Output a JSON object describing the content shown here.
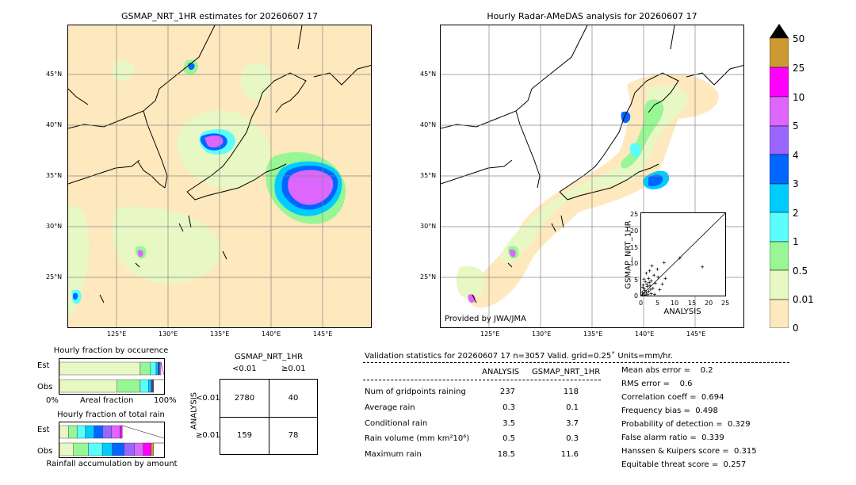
{
  "left_panel": {
    "title": "GSMAP_NRT_1HR estimates for 20260607 17",
    "lon_ticks": [
      "125°E",
      "130°E",
      "135°E",
      "140°E",
      "145°E"
    ],
    "lat_ticks": [
      "45°N",
      "40°N",
      "35°N",
      "30°N",
      "25°N"
    ]
  },
  "right_panel": {
    "title": "Hourly Radar-AMeDAS analysis for 20260607 17",
    "lon_ticks": [
      "125°E",
      "130°E",
      "135°E",
      "140°E",
      "145°E"
    ],
    "lat_ticks": [
      "45°N",
      "40°N",
      "35°N",
      "30°N",
      "25°N"
    ],
    "credit": "Provided by JWA/JMA"
  },
  "colorbar": {
    "levels": [
      "0",
      "0.01",
      "0.5",
      "1",
      "2",
      "3",
      "4",
      "5",
      "10",
      "25",
      "50"
    ],
    "colors": [
      "#fee8bd",
      "#e8f8c4",
      "#98f794",
      "#5cfdfd",
      "#00ccff",
      "#0066ff",
      "#9966ff",
      "#dd66ff",
      "#ff00ff",
      "#cc9933",
      "#000000"
    ]
  },
  "scatter": {
    "xlabel": "ANALYSIS",
    "ylabel": "GSMAP_NRT_1HR",
    "x_ticks": [
      "0",
      "5",
      "10",
      "15",
      "20",
      "25"
    ],
    "y_ticks": [
      "0",
      "5",
      "10",
      "15",
      "20",
      "25"
    ]
  },
  "chart_data": {
    "type": "scatter",
    "xlim": [
      0,
      25
    ],
    "ylim": [
      0,
      25
    ],
    "diagonal_line": true,
    "points": [
      [
        18.2,
        8.7
      ],
      [
        11.5,
        11.4
      ],
      [
        6.8,
        10.0
      ],
      [
        3.2,
        9.0
      ],
      [
        4.8,
        8.0
      ],
      [
        2.5,
        7.5
      ],
      [
        1.5,
        6.8
      ],
      [
        3.8,
        6.2
      ],
      [
        7.2,
        5.2
      ],
      [
        5.0,
        5.6
      ],
      [
        2.2,
        5.2
      ],
      [
        0.8,
        5.0
      ],
      [
        1.2,
        4.2
      ],
      [
        3.0,
        4.5
      ],
      [
        4.2,
        3.7
      ],
      [
        6.3,
        3.5
      ],
      [
        2.6,
        3.0
      ],
      [
        1.8,
        2.8
      ],
      [
        0.5,
        2.5
      ],
      [
        3.5,
        2.2
      ],
      [
        5.5,
        1.8
      ],
      [
        1.0,
        1.6
      ],
      [
        2.2,
        1.3
      ],
      [
        0.4,
        1.0
      ],
      [
        1.5,
        0.8
      ],
      [
        3.0,
        0.6
      ],
      [
        0.7,
        0.5
      ],
      [
        2.0,
        0.3
      ],
      [
        0.3,
        0.2
      ],
      [
        1.2,
        0.1
      ],
      [
        4.0,
        0.4
      ],
      [
        0.9,
        2.0
      ],
      [
        2.8,
        1.9
      ],
      [
        1.7,
        3.5
      ],
      [
        0.6,
        3.2
      ],
      [
        2.4,
        4.0
      ]
    ]
  },
  "occurrence": {
    "title": "Hourly fraction by occurence",
    "row_labels": [
      "Est",
      "Obs"
    ],
    "axis_left": "0%",
    "axis_mid": "Areal fraction",
    "axis_right": "100%",
    "est_fractions": [
      0.772,
      0.097,
      0.055,
      0.018,
      0.01,
      0.008,
      0.01
    ],
    "obs_fractions": [
      0.551,
      0.221,
      0.078,
      0.028,
      0.008,
      0.004,
      0.004,
      0.006
    ]
  },
  "total_rain": {
    "title": "Hourly fraction of total rain",
    "row_labels": [
      "Est",
      "Obs"
    ],
    "footer": "Rainfall accumulation by amount",
    "est_fractions": [
      0.085,
      0.083,
      0.081,
      0.083,
      0.081,
      0.083,
      0.083,
      0.021
    ],
    "obs_fractions": [
      0.134,
      0.142,
      0.134,
      0.095,
      0.113,
      0.1,
      0.084,
      0.074,
      0.024
    ]
  },
  "contingency": {
    "header": "GSMAP_NRT_1HR",
    "col_labels": [
      "<0.01",
      "≥0.01"
    ],
    "row_axis_label": "ANALYSIS",
    "row_labels": [
      "<0.01",
      "≥0.01"
    ],
    "cells": [
      [
        "2780",
        "40"
      ],
      [
        "159",
        "78"
      ]
    ]
  },
  "validation": {
    "header": "Validation statistics for 20260607 17  n=3057 Valid. grid=0.25˚ Units=mm/hr.",
    "col_analysis": "ANALYSIS",
    "col_gsmap": "GSMAP_NRT_1HR",
    "rows": [
      {
        "label": "Num of gridpoints raining",
        "analysis": "237",
        "gsmap": "118"
      },
      {
        "label": "Average rain",
        "analysis": "0.3",
        "gsmap": "0.1"
      },
      {
        "label": "Conditional rain",
        "analysis": "3.5",
        "gsmap": "3.7"
      },
      {
        "label": "Rain volume (mm km²10⁶)",
        "analysis": "0.5",
        "gsmap": "0.3"
      },
      {
        "label": "Maximum rain",
        "analysis": "18.5",
        "gsmap": "11.6"
      }
    ],
    "scores": [
      "Mean abs error =    0.2",
      "RMS error =    0.6",
      "Correlation coeff =  0.694",
      "Frequency bias =  0.498",
      "Probability of detection =  0.329",
      "False alarm ratio =  0.339",
      "Hanssen & Kuipers score =  0.315",
      "Equitable threat score =  0.257"
    ]
  }
}
